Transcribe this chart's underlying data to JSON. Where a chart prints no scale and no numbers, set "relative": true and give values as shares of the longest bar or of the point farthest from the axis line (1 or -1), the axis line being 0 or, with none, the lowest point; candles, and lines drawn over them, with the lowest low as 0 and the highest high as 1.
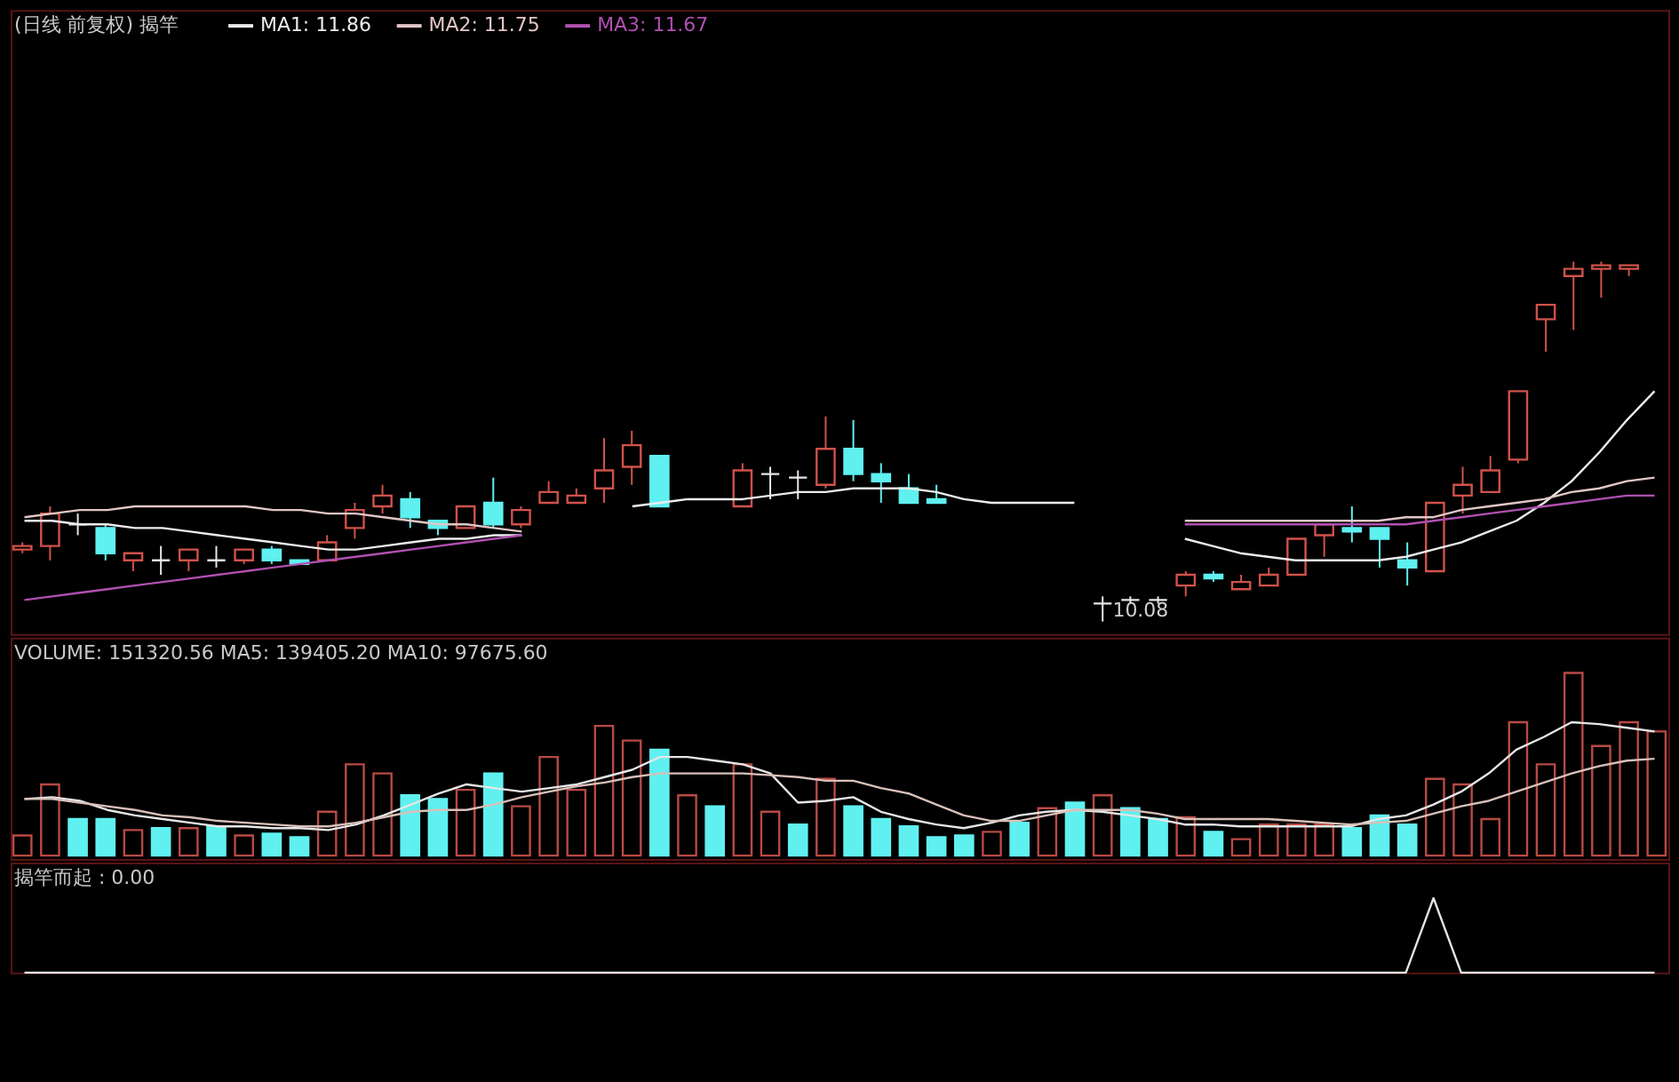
{
  "chart_data": [
    {
      "type": "candlestick",
      "title": "(日线 前复权) 揭竿",
      "relative": true,
      "tick_labels": false,
      "legend": "top left",
      "annotations": [
        "10.08"
      ],
      "categories": [
        null,
        null,
        null,
        null,
        null,
        null,
        null,
        null,
        null,
        null,
        null,
        null,
        null,
        null,
        null,
        null,
        null,
        null,
        null,
        null,
        null,
        null,
        null,
        null,
        null,
        null,
        null,
        null,
        null,
        null,
        null,
        null,
        null,
        null,
        null,
        null,
        null,
        null,
        null,
        null,
        null,
        null,
        null,
        null,
        null,
        null,
        null,
        null,
        null,
        null,
        null,
        null,
        null,
        null,
        null,
        null,
        null,
        null,
        null,
        null
      ],
      "ohlc": [
        [
          0.2,
          0.22,
          0.19,
          0.21
        ],
        [
          0.21,
          0.32,
          0.17,
          0.3
        ],
        [
          0.27,
          0.3,
          0.24,
          0.27
        ],
        [
          0.26,
          0.27,
          0.17,
          0.19
        ],
        [
          0.17,
          0.19,
          0.14,
          0.19
        ],
        [
          0.17,
          0.21,
          0.13,
          0.17
        ],
        [
          0.17,
          0.2,
          0.14,
          0.2
        ],
        [
          0.17,
          0.21,
          0.15,
          0.17
        ],
        [
          0.17,
          0.2,
          0.16,
          0.2
        ],
        [
          0.2,
          0.21,
          0.16,
          0.17
        ],
        [
          0.17,
          0.17,
          0.16,
          0.16
        ],
        [
          0.17,
          0.24,
          0.17,
          0.22
        ],
        [
          0.26,
          0.33,
          0.23,
          0.31
        ],
        [
          0.32,
          0.38,
          0.3,
          0.35
        ],
        [
          0.34,
          0.36,
          0.26,
          0.29
        ],
        [
          0.28,
          0.28,
          0.24,
          0.26
        ],
        [
          0.26,
          0.32,
          0.26,
          0.32
        ],
        [
          0.33,
          0.4,
          0.26,
          0.27
        ],
        [
          0.27,
          0.32,
          0.26,
          0.31
        ],
        [
          0.33,
          0.39,
          0.33,
          0.36
        ],
        [
          0.33,
          0.37,
          0.33,
          0.35
        ],
        [
          0.37,
          0.51,
          0.33,
          0.42
        ],
        [
          0.43,
          0.53,
          0.38,
          0.49
        ],
        [
          0.46,
          0.46,
          0.32,
          0.32
        ],
        null,
        null,
        [
          0.32,
          0.44,
          0.32,
          0.42
        ],
        [
          0.41,
          0.43,
          0.34,
          0.41
        ],
        [
          0.4,
          0.42,
          0.34,
          0.4
        ],
        [
          0.38,
          0.57,
          0.37,
          0.48
        ],
        [
          0.48,
          0.56,
          0.39,
          0.41
        ],
        [
          0.41,
          0.44,
          0.33,
          0.39
        ],
        [
          0.37,
          0.41,
          0.33,
          0.33
        ],
        [
          0.34,
          0.38,
          0.33,
          0.33
        ],
        null,
        null,
        null,
        null,
        null,
        [
          0.05,
          0.07,
          0,
          0.05
        ],
        [
          0.06,
          0.07,
          0.05,
          0.06
        ],
        [
          0.06,
          0.07,
          0.05,
          0.06
        ],
        [
          0.1,
          0.14,
          0.07,
          0.13
        ],
        [
          0.13,
          0.14,
          0.11,
          0.12
        ],
        [
          0.09,
          0.13,
          0.09,
          0.11
        ],
        [
          0.1,
          0.15,
          0.1,
          0.13
        ],
        [
          0.13,
          0.23,
          0.13,
          0.23
        ],
        [
          0.24,
          0.27,
          0.18,
          0.27
        ],
        [
          0.26,
          0.32,
          0.22,
          0.25
        ],
        [
          0.26,
          0.26,
          0.15,
          0.23
        ],
        [
          0.17,
          0.22,
          0.1,
          0.15
        ],
        [
          0.14,
          0.33,
          0.14,
          0.33
        ],
        [
          0.35,
          0.43,
          0.3,
          0.38
        ],
        [
          0.36,
          0.46,
          0.36,
          0.42
        ],
        [
          0.45,
          0.64,
          0.44,
          0.64
        ],
        [
          0.84,
          0.88,
          0.75,
          0.88
        ],
        [
          0.96,
          1.0,
          0.81,
          0.98
        ],
        [
          0.98,
          1.0,
          0.9,
          0.99
        ],
        [
          0.98,
          0.99,
          0.96,
          0.99
        ],
        null
      ],
      "colors": [
        "#d0524a",
        "#d0524a",
        "#e6e6e6",
        "#5ff0f0",
        "#d0524a",
        "#e6e6e6",
        "#d0524a",
        "#e6e6e6",
        "#d0524a",
        "#5ff0f0",
        "#5ff0f0",
        "#d0524a",
        "#d0524a",
        "#d0524a",
        "#5ff0f0",
        "#5ff0f0",
        "#d0524a",
        "#5ff0f0",
        "#d0524a",
        "#d0524a",
        "#d0524a",
        "#d0524a",
        "#d0524a",
        "#5ff0f0",
        null,
        null,
        "#d0524a",
        "#e6e6e6",
        "#e6e6e6",
        "#d0524a",
        "#5ff0f0",
        "#5ff0f0",
        "#5ff0f0",
        "#5ff0f0",
        null,
        null,
        null,
        null,
        null,
        "#e6e6e6",
        "#e6e6e6",
        "#e6e6e6",
        "#d0524a",
        "#5ff0f0",
        "#d0524a",
        "#d0524a",
        "#d0524a",
        "#d0524a",
        "#5ff0f0",
        "#5ff0f0",
        "#5ff0f0",
        "#d0524a",
        "#d0524a",
        "#d0524a",
        "#d0524a",
        "#d0524a",
        "#d0524a",
        "#d0524a",
        "#d0524a",
        null
      ],
      "series": [
        {
          "name": "MA1: 11.86",
          "type": "line",
          "color": "#ececec",
          "values": [
            0.28,
            0.28,
            0.27,
            0.27,
            0.26,
            0.26,
            0.25,
            0.24,
            0.23,
            0.22,
            0.21,
            0.2,
            0.2,
            0.21,
            0.22,
            0.23,
            0.23,
            0.24,
            0.24,
            null,
            null,
            null,
            0.32,
            0.33,
            0.34,
            0.34,
            0.34,
            0.35,
            0.36,
            0.36,
            0.37,
            0.37,
            0.37,
            0.36,
            0.34,
            0.33,
            0.33,
            0.33,
            0.33,
            null,
            null,
            null,
            0.23,
            0.21,
            0.19,
            0.18,
            0.17,
            0.17,
            0.17,
            0.17,
            0.18,
            0.2,
            0.22,
            0.25,
            0.28,
            0.33,
            0.39,
            0.47,
            0.56,
            0.64
          ]
        },
        {
          "name": "MA2: 11.75",
          "type": "line",
          "color": "#e2c6c6",
          "values": [
            0.29,
            0.3,
            0.31,
            0.31,
            0.32,
            0.32,
            0.32,
            0.32,
            0.32,
            0.31,
            0.31,
            0.3,
            0.3,
            0.29,
            0.28,
            0.27,
            0.27,
            0.26,
            0.25,
            null,
            null,
            null,
            null,
            null,
            null,
            null,
            null,
            null,
            null,
            null,
            null,
            null,
            null,
            null,
            null,
            null,
            null,
            null,
            null,
            null,
            null,
            null,
            0.28,
            0.28,
            0.28,
            0.28,
            0.28,
            0.28,
            0.28,
            0.28,
            0.29,
            0.29,
            0.31,
            0.32,
            0.33,
            0.34,
            0.36,
            0.37,
            0.39,
            0.4
          ]
        },
        {
          "name": "MA3: 11.67",
          "type": "line",
          "color": "#b050b0",
          "values": [
            0.06,
            0.07,
            0.08,
            0.09,
            0.1,
            0.11,
            0.12,
            0.13,
            0.14,
            0.15,
            0.16,
            0.17,
            0.18,
            0.19,
            0.2,
            0.21,
            0.22,
            0.23,
            0.24,
            null,
            null,
            null,
            null,
            null,
            null,
            null,
            null,
            null,
            null,
            null,
            null,
            null,
            null,
            null,
            null,
            null,
            null,
            null,
            null,
            null,
            null,
            null,
            0.27,
            0.27,
            0.27,
            0.27,
            0.27,
            0.27,
            0.27,
            0.27,
            0.27,
            0.28,
            0.29,
            0.3,
            0.31,
            0.32,
            0.33,
            0.34,
            0.35,
            0.35
          ]
        }
      ]
    },
    {
      "type": "bar",
      "title": "VOLUME: 151320.56 MA5: 139405.20 MA10: 97675.60",
      "relative": true,
      "tick_labels": false,
      "categories": [
        null,
        null,
        null,
        null,
        null,
        null,
        null,
        null,
        null,
        null,
        null,
        null,
        null,
        null,
        null,
        null,
        null,
        null,
        null,
        null,
        null,
        null,
        null,
        null,
        null,
        null,
        null,
        null,
        null,
        null,
        null,
        null,
        null,
        null,
        null,
        null,
        null,
        null,
        null,
        null,
        null,
        null,
        null,
        null,
        null,
        null,
        null,
        null,
        null,
        null,
        null,
        null,
        null,
        null,
        null,
        null,
        null,
        null,
        null,
        null
      ],
      "series": [
        {
          "type": "bar",
          "values": [
            0.11,
            0.39,
            0.2,
            0.2,
            0.14,
            0.15,
            0.15,
            0.16,
            0.11,
            0.12,
            0.1,
            0.24,
            0.5,
            0.45,
            0.33,
            0.31,
            0.36,
            0.45,
            0.27,
            0.54,
            0.36,
            0.71,
            0.63,
            0.58,
            0.33,
            0.27,
            0.5,
            0.24,
            0.17,
            0.42,
            0.27,
            0.2,
            0.16,
            0.1,
            0.11,
            0.13,
            0.18,
            0.26,
            0.29,
            0.33,
            0.26,
            0.2,
            0.21,
            0.13,
            0.09,
            0.17,
            0.17,
            0.17,
            0.15,
            0.22,
            0.17,
            0.42,
            0.39,
            0.2,
            0.73,
            0.5,
            1.0,
            0.6,
            0.73,
            0.68
          ],
          "colors": [
            "#b84a44",
            "#b84a44",
            "#60f0f0",
            "#60f0f0",
            "#b84a44",
            "#60f0f0",
            "#b84a44",
            "#60f0f0",
            "#b84a44",
            "#60f0f0",
            "#60f0f0",
            "#b84a44",
            "#b84a44",
            "#b84a44",
            "#60f0f0",
            "#60f0f0",
            "#b84a44",
            "#60f0f0",
            "#b84a44",
            "#b84a44",
            "#b84a44",
            "#b84a44",
            "#b84a44",
            "#60f0f0",
            "#b84a44",
            "#60f0f0",
            "#b84a44",
            "#b84a44",
            "#60f0f0",
            "#b84a44",
            "#60f0f0",
            "#60f0f0",
            "#60f0f0",
            "#60f0f0",
            "#60f0f0",
            "#b84a44",
            "#60f0f0",
            "#b84a44",
            "#60f0f0",
            "#b84a44",
            "#60f0f0",
            "#60f0f0",
            "#b84a44",
            "#60f0f0",
            "#b84a44",
            "#b84a44",
            "#b84a44",
            "#b84a44",
            "#60f0f0",
            "#60f0f0",
            "#60f0f0",
            "#b84a44",
            "#b84a44",
            "#b84a44",
            "#b84a44",
            "#b84a44",
            "#b84a44",
            "#b84a44",
            "#b84a44",
            "#b84a44"
          ]
        },
        {
          "type": "line",
          "color": "#e6e6e6",
          "values": [
            0.31,
            0.32,
            0.3,
            0.25,
            0.22,
            0.2,
            0.18,
            0.16,
            0.16,
            0.15,
            0.15,
            0.14,
            0.17,
            0.22,
            0.28,
            0.34,
            0.39,
            0.37,
            0.35,
            0.37,
            0.39,
            0.43,
            0.47,
            0.54,
            0.54,
            0.52,
            0.5,
            0.45,
            0.29,
            0.3,
            0.32,
            0.24,
            0.2,
            0.17,
            0.15,
            0.18,
            0.22,
            0.24,
            0.25,
            0.24,
            0.22,
            0.2,
            0.17,
            0.17,
            0.16,
            0.16,
            0.16,
            0.16,
            0.16,
            0.2,
            0.22,
            0.28,
            0.35,
            0.45,
            0.58,
            0.65,
            0.73,
            0.72,
            0.7,
            0.68
          ]
        },
        {
          "type": "line",
          "color": "#d8c0b8",
          "values": [
            0.31,
            0.31,
            0.29,
            0.27,
            0.25,
            0.22,
            0.21,
            0.19,
            0.18,
            0.17,
            0.16,
            0.16,
            0.18,
            0.21,
            0.24,
            0.25,
            0.25,
            0.28,
            0.32,
            0.35,
            0.38,
            0.4,
            0.43,
            0.45,
            0.45,
            0.45,
            0.45,
            0.44,
            0.43,
            0.41,
            0.41,
            0.37,
            0.34,
            0.28,
            0.22,
            0.19,
            0.19,
            0.22,
            0.25,
            0.25,
            0.25,
            0.23,
            0.2,
            0.2,
            0.2,
            0.2,
            0.19,
            0.18,
            0.17,
            0.18,
            0.19,
            0.23,
            0.27,
            0.3,
            0.35,
            0.4,
            0.45,
            0.49,
            0.52,
            0.53
          ]
        }
      ]
    },
    {
      "type": "line",
      "title": "揭竿而起 : 0.00",
      "relative": true,
      "tick_labels": false,
      "color": "#e6e6e6",
      "categories": [
        null,
        null,
        null,
        null,
        null,
        null,
        null,
        null,
        null,
        null,
        null,
        null,
        null,
        null,
        null,
        null,
        null,
        null,
        null,
        null,
        null,
        null,
        null,
        null,
        null,
        null,
        null,
        null,
        null,
        null,
        null,
        null,
        null,
        null,
        null,
        null,
        null,
        null,
        null,
        null,
        null,
        null,
        null,
        null,
        null,
        null,
        null,
        null,
        null,
        null,
        null,
        null,
        null,
        null,
        null,
        null,
        null,
        null,
        null,
        null
      ],
      "values": [
        0,
        0,
        0,
        0,
        0,
        0,
        0,
        0,
        0,
        0,
        0,
        0,
        0,
        0,
        0,
        0,
        0,
        0,
        0,
        0,
        0,
        0,
        0,
        0,
        0,
        0,
        0,
        0,
        0,
        0,
        0,
        0,
        0,
        0,
        0,
        0,
        0,
        0,
        0,
        0,
        0,
        0,
        0,
        0,
        0,
        0,
        0,
        0,
        0,
        0,
        0,
        1,
        0,
        0,
        0,
        0,
        0,
        0,
        0,
        0
      ]
    }
  ]
}
